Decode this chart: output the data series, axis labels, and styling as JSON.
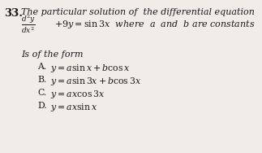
{
  "background_color": "#f0ede8",
  "text_color": "#1a1a1a",
  "fig_width": 3.23,
  "fig_height": 1.88,
  "dpi": 100,
  "q_num": "33.",
  "line1": "The particular solution of  the differential equation",
  "fraction_eq": "$\\frac{d^2y}{dx^2}$",
  "eq_rest": "$+ 9y = \\sin 3x$  where  $a$  and  $b$ are constants",
  "is_form": "Is of the form",
  "optA_label": "A.",
  "optA_text": "$y = a\\sin x + b\\cos x$",
  "optB_label": "B.",
  "optB_text": "$y = a\\sin 3x + b\\cos 3x$",
  "optC_label": "C.",
  "optC_text": "$y = ax\\cos 3x$",
  "optD_label": "D.",
  "optD_text": "$y = ax\\sin x$",
  "fs_qnum": 9.5,
  "fs_main": 8.0,
  "fs_italic": 8.0,
  "fs_options": 7.8
}
